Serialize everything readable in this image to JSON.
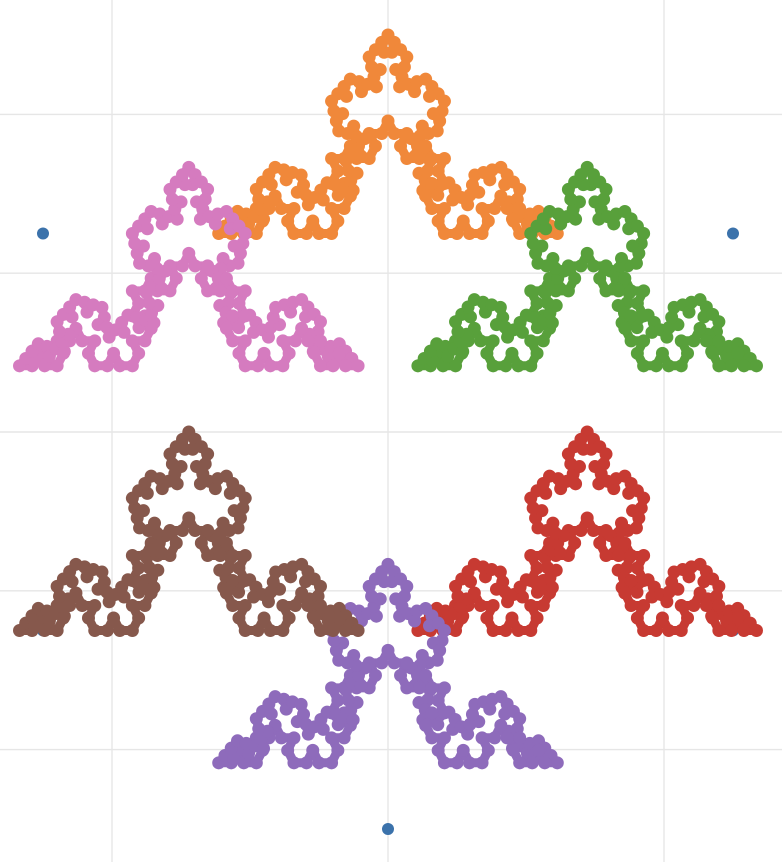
{
  "chart_data": {
    "type": "scatter",
    "title": "",
    "xlabel": "",
    "ylabel": "",
    "grid": true,
    "xlim": [
      -1.6,
      1.6
    ],
    "ylim": [
      -1.0,
      1.0
    ],
    "x_gridlines": [
      -0.8,
      0.0,
      0.8
    ],
    "y_gridlines": [
      -0.8,
      -0.4,
      0.0,
      0.4,
      0.8
    ],
    "fractal_depth": 3,
    "series": [
      {
        "color": "#3b72ab",
        "values": [
          [
            0.0,
            1.0
          ],
          [
            1.0,
            0.5
          ],
          [
            1.0,
            -0.5
          ],
          [
            0.0,
            -1.0
          ],
          [
            -1.0,
            -0.5
          ],
          [
            -1.0,
            0.5
          ]
        ]
      },
      {
        "color": "#f0883a",
        "center": [
          0.0,
          0.6667
        ],
        "radius": 0.3333
      },
      {
        "color": "#58a03b",
        "center": [
          0.5774,
          0.3333
        ],
        "radius": 0.3333
      },
      {
        "color": "#c73a32",
        "center": [
          0.5774,
          -0.3333
        ],
        "radius": 0.3333
      },
      {
        "color": "#8e6bbb",
        "center": [
          0.0,
          -0.6667
        ],
        "radius": 0.3333
      },
      {
        "color": "#86584c",
        "center": [
          -0.5774,
          -0.3333
        ],
        "radius": 0.3333
      },
      {
        "color": "#d57bbf",
        "center": [
          -0.5774,
          0.3333
        ],
        "radius": 0.3333
      }
    ]
  }
}
